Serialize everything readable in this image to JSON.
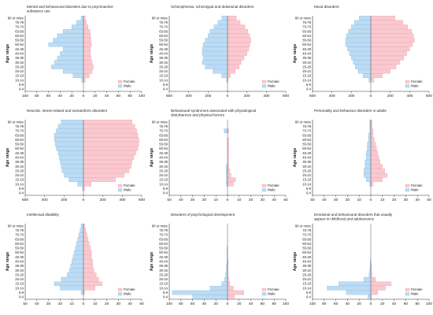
{
  "colors": {
    "female": "#f9c9cf",
    "male": "#bcdcf4",
    "female_edge": "#eb9aa6",
    "male_edge": "#7fb6e2",
    "axis": "#333333"
  },
  "age_groups": [
    "0-4",
    "5-9",
    "10-14",
    "15-19",
    "20-24",
    "25-29",
    "30-34",
    "35-39",
    "40-44",
    "45-49",
    "50-54",
    "55-59",
    "60-64",
    "65-69",
    "70-74",
    "75-79",
    "80 or more"
  ],
  "y_axis_label": "Age range",
  "legend": {
    "female": "Female",
    "male": "Male"
  },
  "chart_data": [
    {
      "type": "bar",
      "orientation": "population-pyramid",
      "title": "Mental and behavioural disorders due to psychoactive substance use",
      "xticks": [
        "100",
        "80",
        "60",
        "40",
        "20",
        "0",
        "20",
        "40",
        "60",
        "80",
        "100"
      ],
      "xlim": [
        -100,
        100
      ],
      "series": [
        {
          "name": "Female",
          "values": [
            0,
            0,
            3,
            10,
            15,
            17,
            15,
            13,
            12,
            12,
            14,
            13,
            12,
            11,
            8,
            5,
            3
          ]
        },
        {
          "name": "Male",
          "values": [
            0,
            0,
            3,
            18,
            35,
            55,
            50,
            45,
            40,
            35,
            60,
            52,
            45,
            35,
            20,
            12,
            4
          ]
        }
      ]
    },
    {
      "type": "bar",
      "orientation": "population-pyramid",
      "title": "Schizophrenia, schizotypal and delusional disorders",
      "xticks": [
        "600",
        "400",
        "200",
        "0",
        "200",
        "400",
        "600"
      ],
      "xlim": [
        -600,
        600
      ],
      "series": [
        {
          "name": "Female",
          "values": [
            0,
            0,
            5,
            30,
            80,
            120,
            140,
            170,
            200,
            220,
            230,
            240,
            230,
            210,
            180,
            130,
            90
          ]
        },
        {
          "name": "Male",
          "values": [
            0,
            0,
            10,
            60,
            150,
            230,
            260,
            250,
            260,
            260,
            250,
            230,
            200,
            180,
            140,
            100,
            60
          ]
        }
      ]
    },
    {
      "type": "bar",
      "orientation": "population-pyramid",
      "title": "Mood disorders",
      "xticks": [
        "600",
        "400",
        "200",
        "0",
        "200",
        "400",
        "600"
      ],
      "xlim": [
        -600,
        600
      ],
      "series": [
        {
          "name": "Female",
          "values": [
            0,
            0,
            30,
            120,
            200,
            260,
            300,
            340,
            370,
            400,
            430,
            450,
            440,
            420,
            380,
            330,
            250
          ]
        },
        {
          "name": "Male",
          "values": [
            0,
            0,
            20,
            80,
            130,
            160,
            180,
            200,
            220,
            240,
            260,
            260,
            250,
            230,
            200,
            170,
            120
          ]
        }
      ]
    },
    {
      "type": "bar",
      "orientation": "population-pyramid",
      "title": "Neurotic, stress-related and somatoform disorders",
      "xticks": [
        "600",
        "400",
        "200",
        "0",
        "200",
        "400",
        "600"
      ],
      "xlim": [
        -600,
        600
      ],
      "series": [
        {
          "name": "Female",
          "values": [
            0,
            10,
            80,
            330,
            420,
            470,
            490,
            500,
            520,
            540,
            560,
            570,
            570,
            560,
            550,
            530,
            500
          ]
        },
        {
          "name": "Male",
          "values": [
            0,
            10,
            60,
            150,
            200,
            220,
            230,
            240,
            250,
            260,
            280,
            290,
            300,
            300,
            280,
            260,
            230
          ]
        }
      ]
    },
    {
      "type": "bar",
      "orientation": "population-pyramid",
      "title": "Behavioural syndromes associated with physiological disturbances and physical factors",
      "xticks": [
        "50",
        "40",
        "30",
        "20",
        "10",
        "0",
        "10",
        "20",
        "30",
        "40",
        "50"
      ],
      "xlim": [
        -50,
        50
      ],
      "series": [
        {
          "name": "Female",
          "values": [
            0,
            0,
            5,
            7,
            3,
            2,
            1,
            1,
            1,
            1,
            1,
            1,
            1,
            0,
            1,
            0,
            0
          ]
        },
        {
          "name": "Male",
          "values": [
            0,
            0,
            1,
            1,
            1,
            1,
            1,
            0,
            0,
            0,
            0,
            0,
            0,
            0,
            3,
            0,
            0
          ]
        }
      ]
    },
    {
      "type": "bar",
      "orientation": "population-pyramid",
      "title": "Personality and behaviour disorders in adults",
      "xticks": [
        "50",
        "40",
        "30",
        "20",
        "10",
        "0",
        "10",
        "20",
        "30",
        "40",
        "50"
      ],
      "xlim": [
        -50,
        50
      ],
      "series": [
        {
          "name": "Female",
          "values": [
            0,
            0,
            2,
            10,
            14,
            12,
            10,
            8,
            7,
            6,
            5,
            4,
            3,
            2,
            2,
            1,
            1
          ]
        },
        {
          "name": "Male",
          "values": [
            0,
            0,
            1,
            4,
            6,
            6,
            5,
            5,
            4,
            4,
            3,
            3,
            2,
            2,
            1,
            1,
            1
          ]
        }
      ]
    },
    {
      "type": "bar",
      "orientation": "population-pyramid",
      "title": "Intellectual disability",
      "xticks": [
        "50",
        "40",
        "30",
        "20",
        "10",
        "0",
        "10",
        "20",
        "30",
        "40",
        "50"
      ],
      "xlim": [
        -50,
        50
      ],
      "series": [
        {
          "name": "Female",
          "values": [
            0,
            1,
            10,
            16,
            13,
            11,
            9,
            8,
            8,
            7,
            7,
            6,
            5,
            4,
            3,
            2,
            1
          ]
        },
        {
          "name": "Male",
          "values": [
            0,
            2,
            20,
            25,
            19,
            14,
            12,
            11,
            10,
            9,
            8,
            7,
            6,
            5,
            4,
            3,
            2
          ]
        }
      ]
    },
    {
      "type": "bar",
      "orientation": "population-pyramid",
      "title": "Disorders of psychological development",
      "xticks": [
        "100",
        "80",
        "60",
        "40",
        "20",
        "0",
        "20",
        "40",
        "60",
        "80",
        "100"
      ],
      "xlim": [
        -100,
        100
      ],
      "series": [
        {
          "name": "Female",
          "values": [
            12,
            28,
            10,
            4,
            2,
            1,
            1,
            1,
            1,
            0,
            0,
            0,
            0,
            0,
            0,
            0,
            0
          ]
        },
        {
          "name": "Male",
          "values": [
            60,
            95,
            30,
            10,
            5,
            3,
            2,
            2,
            1,
            1,
            1,
            1,
            0,
            0,
            0,
            0,
            0
          ]
        }
      ]
    },
    {
      "type": "bar",
      "orientation": "population-pyramid",
      "title": "Emotional and behavioural disorders that usually appear in childhood and adolescence",
      "xticks": [
        "100",
        "80",
        "60",
        "40",
        "20",
        "0",
        "20",
        "40",
        "60",
        "80",
        "100"
      ],
      "xlim": [
        -100,
        100
      ],
      "series": [
        {
          "name": "Female",
          "values": [
            1,
            12,
            25,
            35,
            8,
            2,
            1,
            1,
            0,
            0,
            0,
            0,
            0,
            0,
            0,
            0,
            0
          ]
        },
        {
          "name": "Male",
          "values": [
            5,
            42,
            75,
            55,
            12,
            3,
            2,
            1,
            1,
            0,
            0,
            0,
            0,
            0,
            0,
            0,
            0
          ]
        }
      ]
    }
  ]
}
